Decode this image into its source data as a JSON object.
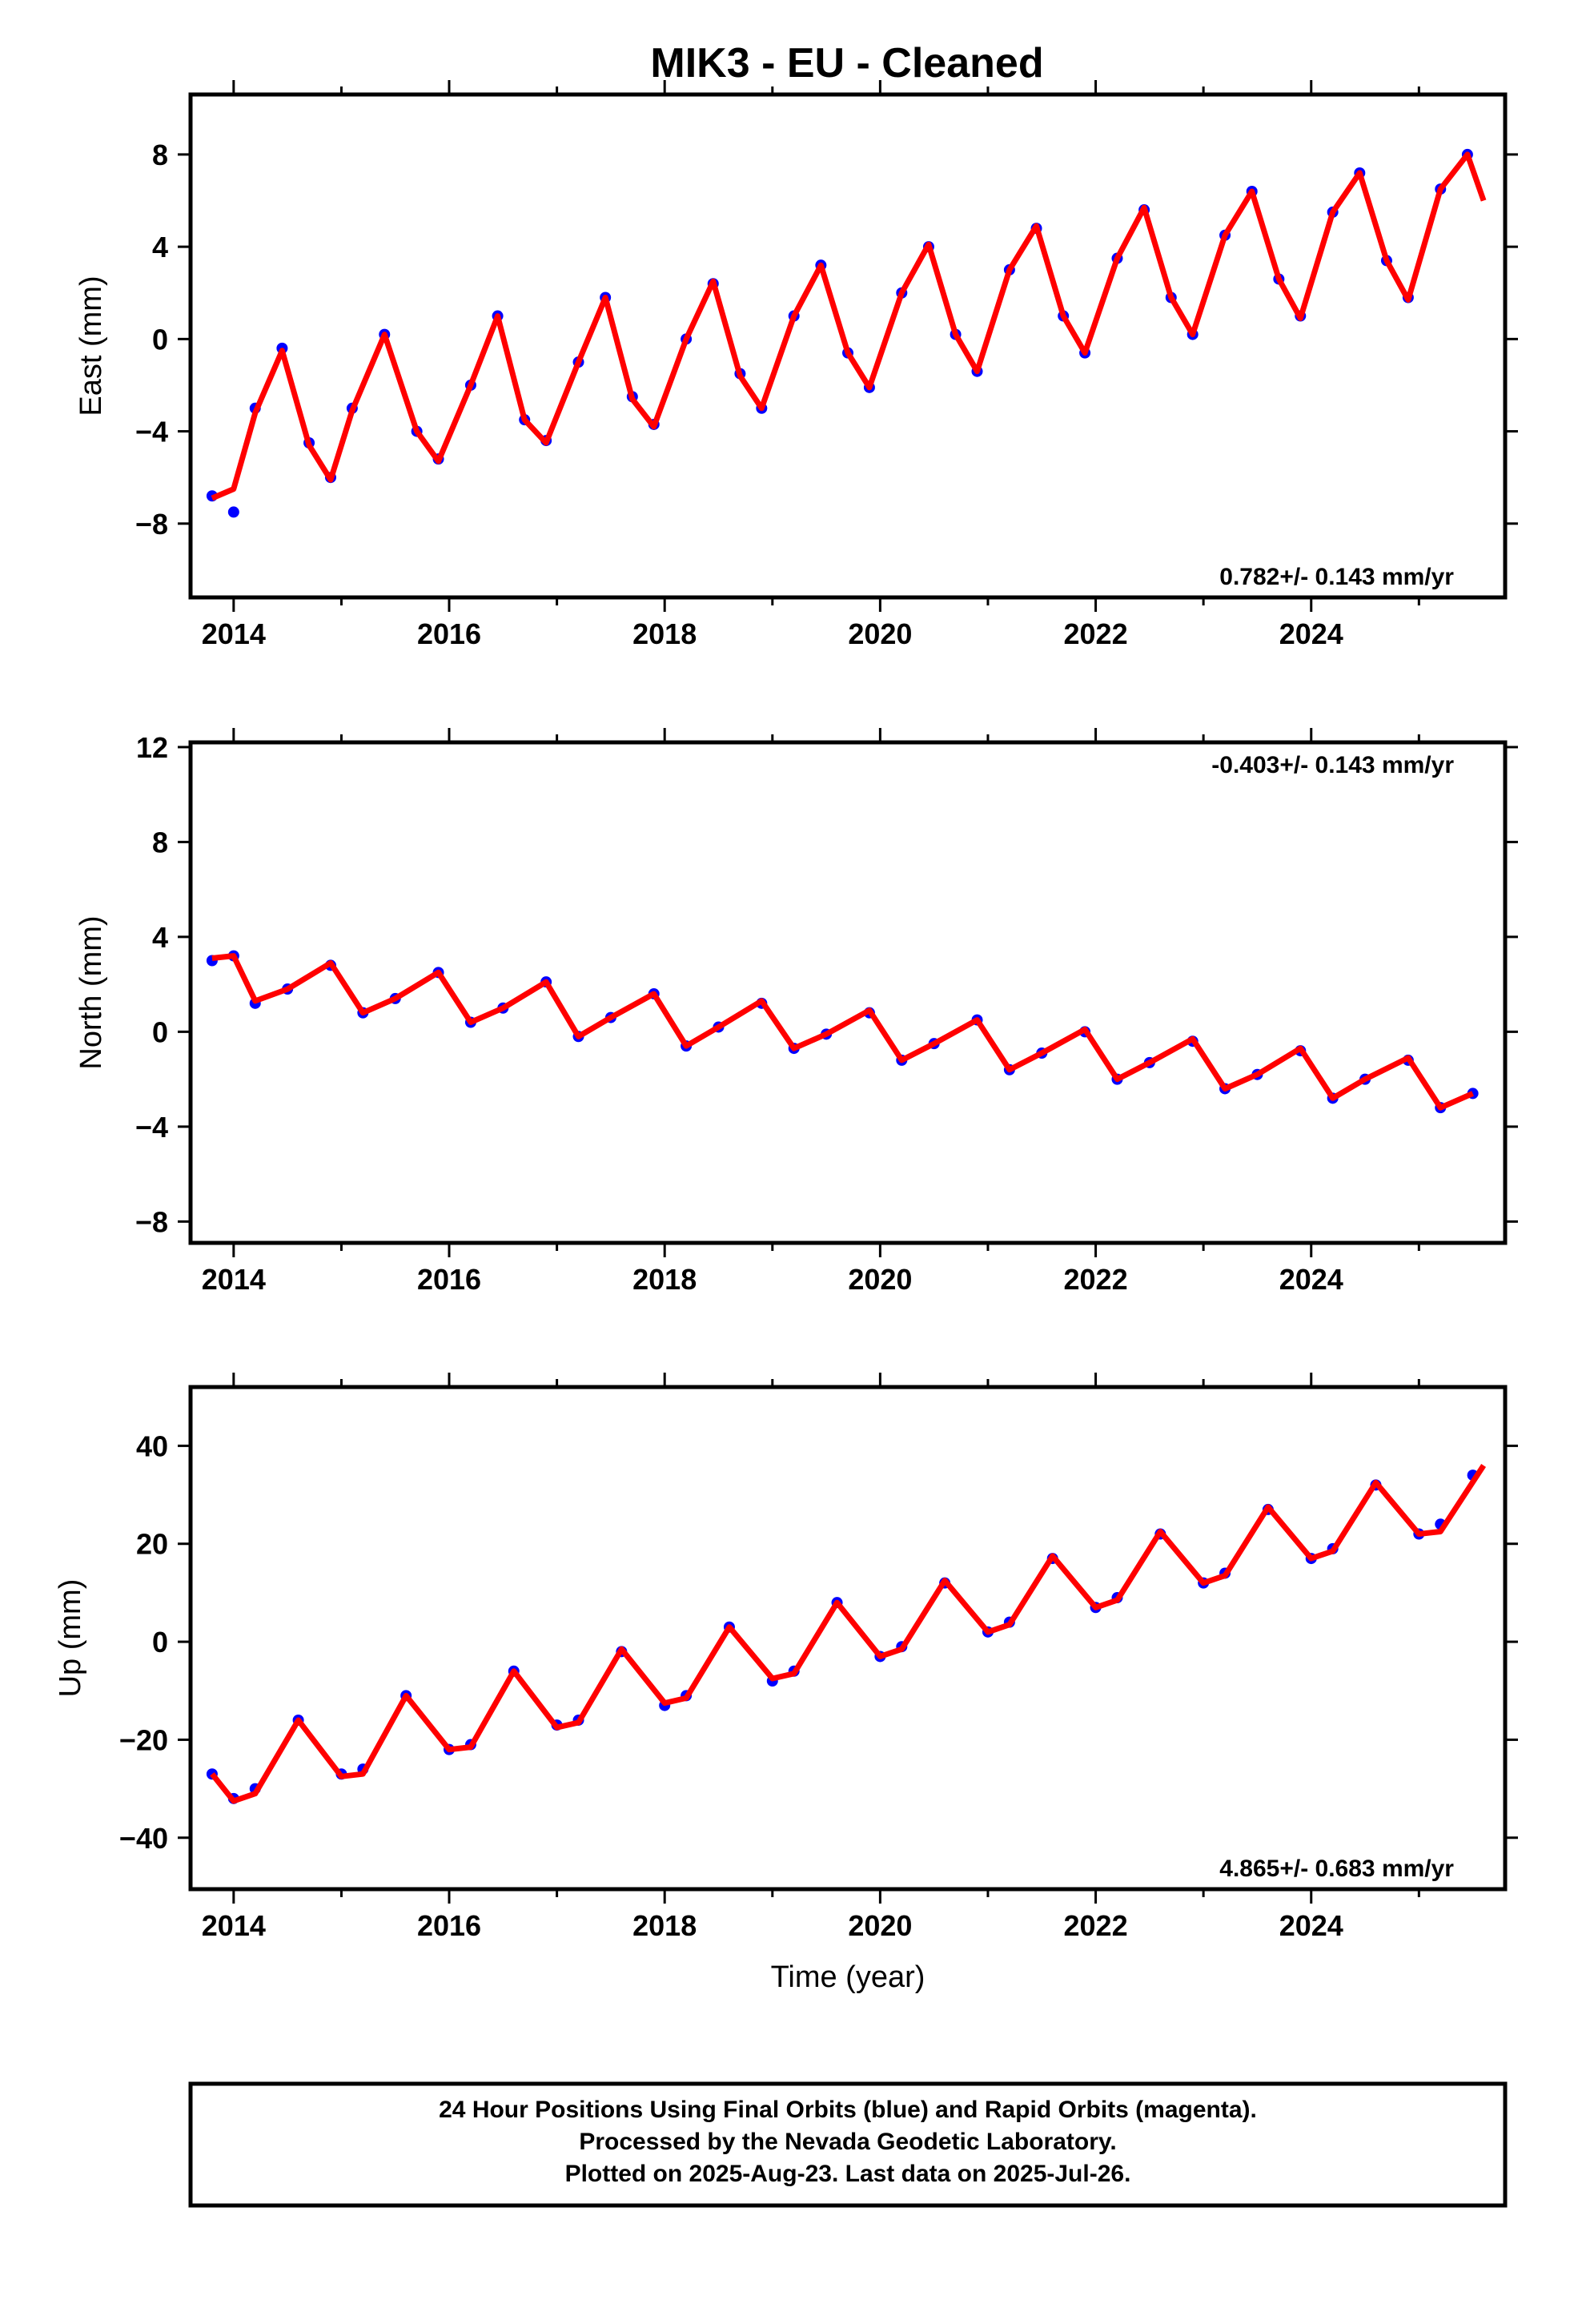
{
  "title": "MIK3  - EU - Cleaned",
  "chart_data": [
    {
      "type": "scatter",
      "ylabel": "East (mm)",
      "xlim": [
        2013.6,
        2025.8
      ],
      "ylim": [
        -11.2,
        10.6
      ],
      "xticks": [
        2014,
        2016,
        2018,
        2020,
        2022,
        2024
      ],
      "yticks": [
        -8,
        -4,
        0,
        4,
        8
      ],
      "annotation": "0.782+/- 0.143 mm/yr",
      "annotation_position": "bottom-right",
      "series": [
        {
          "color": "#0000ff",
          "x": [
            2013.8,
            2014.0,
            2014.2,
            2014.45,
            2014.7,
            2014.9,
            2015.1,
            2015.4,
            2015.7,
            2015.9,
            2016.2,
            2016.45,
            2016.7,
            2016.9,
            2017.2,
            2017.45,
            2017.7,
            2017.9,
            2018.2,
            2018.45,
            2018.7,
            2018.9,
            2019.2,
            2019.45,
            2019.7,
            2019.9,
            2020.2,
            2020.45,
            2020.7,
            2020.9,
            2021.2,
            2021.45,
            2021.7,
            2021.9,
            2022.2,
            2022.45,
            2022.7,
            2022.9,
            2023.2,
            2023.45,
            2023.7,
            2023.9,
            2024.2,
            2024.45,
            2024.7,
            2024.9,
            2025.2,
            2025.45
          ],
          "y": [
            -6.8,
            -7.5,
            -3.0,
            -0.4,
            -4.5,
            -6.0,
            -3.0,
            0.2,
            -4.0,
            -5.2,
            -2.0,
            1.0,
            -3.5,
            -4.4,
            -1.0,
            1.8,
            -2.5,
            -3.7,
            0.0,
            2.4,
            -1.5,
            -3.0,
            1.0,
            3.2,
            -0.6,
            -2.1,
            2.0,
            4.0,
            0.2,
            -1.4,
            3.0,
            4.8,
            1.0,
            -0.6,
            3.5,
            5.6,
            1.8,
            0.2,
            4.5,
            6.4,
            2.6,
            1.0,
            5.5,
            7.2,
            3.4,
            1.8,
            6.5,
            8.0
          ]
        }
      ],
      "fit": {
        "color": "#ff0000",
        "x": [
          2013.8,
          2014.0,
          2014.2,
          2014.45,
          2014.7,
          2014.9,
          2015.1,
          2015.4,
          2015.7,
          2015.9,
          2016.2,
          2016.45,
          2016.7,
          2016.9,
          2017.2,
          2017.45,
          2017.7,
          2017.9,
          2018.2,
          2018.45,
          2018.7,
          2018.9,
          2019.2,
          2019.45,
          2019.7,
          2019.9,
          2020.2,
          2020.45,
          2020.7,
          2020.9,
          2021.2,
          2021.45,
          2021.7,
          2021.9,
          2022.2,
          2022.45,
          2022.7,
          2022.9,
          2023.2,
          2023.45,
          2023.7,
          2023.9,
          2024.2,
          2024.45,
          2024.7,
          2024.9,
          2025.2,
          2025.45,
          2025.6
        ],
        "y": [
          -6.9,
          -6.5,
          -3.2,
          -0.5,
          -4.6,
          -6.1,
          -3.1,
          0.2,
          -4.0,
          -5.3,
          -2.0,
          1.0,
          -3.5,
          -4.5,
          -1.0,
          1.8,
          -2.6,
          -3.8,
          0.0,
          2.5,
          -1.6,
          -3.0,
          1.0,
          3.2,
          -0.6,
          -2.1,
          2.0,
          4.1,
          0.2,
          -1.4,
          3.0,
          4.9,
          1.0,
          -0.6,
          3.5,
          5.7,
          1.8,
          0.2,
          4.5,
          6.4,
          2.6,
          0.9,
          5.5,
          7.2,
          3.4,
          1.7,
          6.5,
          8.0,
          6.0
        ]
      }
    },
    {
      "type": "scatter",
      "ylabel": "North (mm)",
      "xlim": [
        2013.6,
        2025.8
      ],
      "ylim": [
        -8.9,
        12.2
      ],
      "xticks": [
        2014,
        2016,
        2018,
        2020,
        2022,
        2024
      ],
      "yticks": [
        -8,
        -4,
        0,
        4,
        8,
        12
      ],
      "annotation": "-0.403+/- 0.143 mm/yr",
      "annotation_position": "top-right",
      "series": [
        {
          "color": "#0000ff",
          "x": [
            2013.8,
            2014.0,
            2014.2,
            2014.5,
            2014.9,
            2015.2,
            2015.5,
            2015.9,
            2016.2,
            2016.5,
            2016.9,
            2017.2,
            2017.5,
            2017.9,
            2018.2,
            2018.5,
            2018.9,
            2019.2,
            2019.5,
            2019.9,
            2020.2,
            2020.5,
            2020.9,
            2021.2,
            2021.5,
            2021.9,
            2022.2,
            2022.5,
            2022.9,
            2023.2,
            2023.5,
            2023.9,
            2024.2,
            2024.5,
            2024.9,
            2025.2,
            2025.5
          ],
          "y": [
            3.0,
            3.2,
            1.2,
            1.8,
            2.8,
            0.8,
            1.4,
            2.5,
            0.4,
            1.0,
            2.1,
            -0.2,
            0.6,
            1.6,
            -0.6,
            0.2,
            1.2,
            -0.7,
            -0.1,
            0.8,
            -1.2,
            -0.5,
            0.5,
            -1.6,
            -0.9,
            0.0,
            -2.0,
            -1.3,
            -0.4,
            -2.4,
            -1.8,
            -0.8,
            -2.8,
            -2.0,
            -1.2,
            -3.2,
            -2.6
          ]
        }
      ],
      "fit": {
        "color": "#ff0000",
        "x": [
          2013.8,
          2014.0,
          2014.2,
          2014.5,
          2014.9,
          2015.2,
          2015.5,
          2015.9,
          2016.2,
          2016.5,
          2016.9,
          2017.2,
          2017.5,
          2017.9,
          2018.2,
          2018.5,
          2018.9,
          2019.2,
          2019.5,
          2019.9,
          2020.2,
          2020.5,
          2020.9,
          2021.2,
          2021.5,
          2021.9,
          2022.2,
          2022.5,
          2022.9,
          2023.2,
          2023.5,
          2023.9,
          2024.2,
          2024.5,
          2024.9,
          2025.2,
          2025.5
        ],
        "y": [
          3.1,
          3.2,
          1.3,
          1.8,
          2.9,
          0.8,
          1.4,
          2.5,
          0.4,
          1.0,
          2.1,
          -0.2,
          0.6,
          1.6,
          -0.6,
          0.2,
          1.3,
          -0.7,
          -0.1,
          0.9,
          -1.2,
          -0.5,
          0.5,
          -1.6,
          -0.9,
          0.1,
          -2.0,
          -1.3,
          -0.3,
          -2.4,
          -1.8,
          -0.7,
          -2.8,
          -2.0,
          -1.1,
          -3.2,
          -2.6
        ]
      }
    },
    {
      "type": "scatter",
      "ylabel": "Up (mm)",
      "xlabel": "Time (year)",
      "xlim": [
        2013.6,
        2025.8
      ],
      "ylim": [
        -50.5,
        52.0
      ],
      "xticks": [
        2014,
        2016,
        2018,
        2020,
        2022,
        2024
      ],
      "yticks": [
        -40,
        -20,
        0,
        20,
        40
      ],
      "annotation": "4.865+/- 0.683 mm/yr",
      "annotation_position": "bottom-right",
      "series": [
        {
          "color": "#0000ff",
          "x": [
            2013.8,
            2014.0,
            2014.2,
            2014.6,
            2015.0,
            2015.2,
            2015.6,
            2016.0,
            2016.2,
            2016.6,
            2017.0,
            2017.2,
            2017.6,
            2018.0,
            2018.2,
            2018.6,
            2019.0,
            2019.2,
            2019.6,
            2020.0,
            2020.2,
            2020.6,
            2021.0,
            2021.2,
            2021.6,
            2022.0,
            2022.2,
            2022.6,
            2023.0,
            2023.2,
            2023.6,
            2024.0,
            2024.2,
            2024.6,
            2025.0,
            2025.2,
            2025.5
          ],
          "y": [
            -27.0,
            -32.0,
            -30.0,
            -16.0,
            -27.0,
            -26.0,
            -11.0,
            -22.0,
            -21.0,
            -6.0,
            -17.0,
            -16.0,
            -2.0,
            -13.0,
            -11.0,
            3.0,
            -8.0,
            -6.0,
            8.0,
            -3.0,
            -1.0,
            12.0,
            2.0,
            4.0,
            17.0,
            7.0,
            9.0,
            22.0,
            12.0,
            14.0,
            27.0,
            17.0,
            19.0,
            32.0,
            22.0,
            24.0,
            34.0
          ]
        }
      ],
      "fit": {
        "color": "#ff0000",
        "x": [
          2013.8,
          2014.0,
          2014.2,
          2014.6,
          2015.0,
          2015.2,
          2015.6,
          2016.0,
          2016.2,
          2016.6,
          2017.0,
          2017.2,
          2017.6,
          2018.0,
          2018.2,
          2018.6,
          2019.0,
          2019.2,
          2019.6,
          2020.0,
          2020.2,
          2020.6,
          2021.0,
          2021.2,
          2021.6,
          2022.0,
          2022.2,
          2022.6,
          2023.0,
          2023.2,
          2023.6,
          2024.0,
          2024.2,
          2024.6,
          2025.0,
          2025.2,
          2025.6
        ],
        "y": [
          -27.0,
          -32.5,
          -31.0,
          -16.0,
          -27.5,
          -27.0,
          -11.0,
          -22.0,
          -21.5,
          -6.0,
          -17.5,
          -16.5,
          -1.5,
          -12.5,
          -11.5,
          3.0,
          -7.5,
          -6.5,
          8.0,
          -3.0,
          -1.5,
          12.5,
          2.0,
          3.5,
          17.5,
          7.0,
          8.5,
          22.5,
          12.0,
          13.5,
          27.5,
          17.0,
          18.5,
          32.5,
          22.0,
          22.5,
          36.0
        ]
      }
    }
  ],
  "footer": {
    "line1": "24 Hour Positions Using Final Orbits (blue) and Rapid Orbits (magenta).",
    "line2": "Processed by the Nevada Geodetic Laboratory.",
    "line3": "Plotted on 2025-Aug-23. Last data on 2025-Jul-26."
  }
}
